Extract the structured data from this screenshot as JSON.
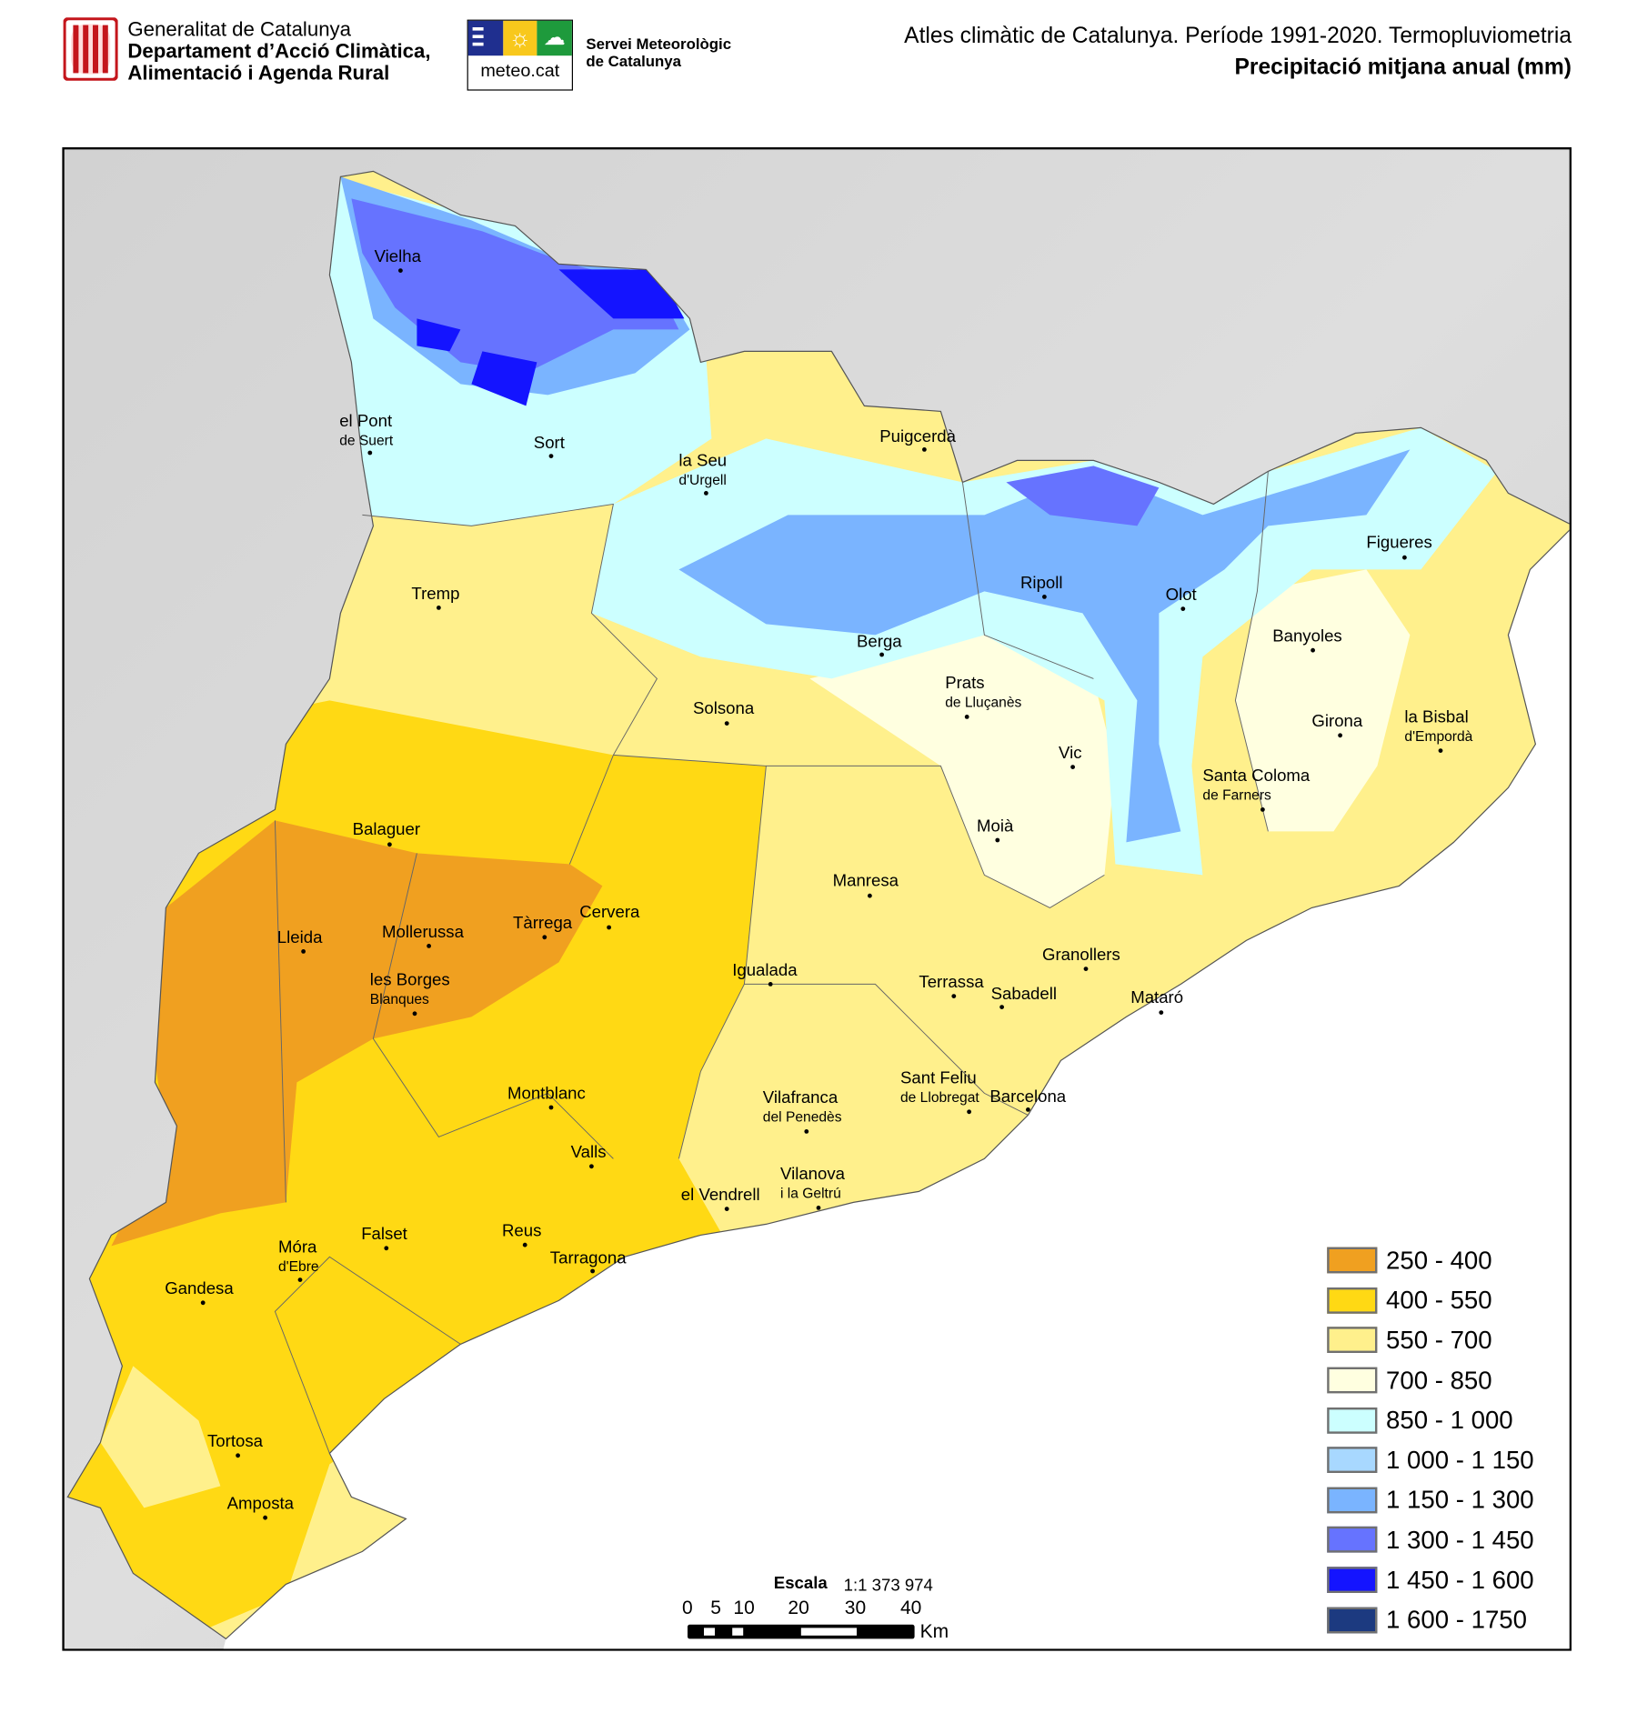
{
  "header": {
    "generalitat": "Generalitat de Catalunya",
    "department_line1": "Departament d’Acció Climàtica,",
    "department_line2": "Alimentació i Agenda Rural",
    "meteo_logo": "meteo.cat",
    "servei_line1": "Servei Meteorològic",
    "servei_line2": "de Catalunya",
    "title": "Atles climàtic de Catalunya. Període 1991-2020. Termopluviometria",
    "subtitle": "Precipitació mitjana anual (mm)"
  },
  "legend": [
    {
      "label": "250 - 400",
      "color": "#f0a020"
    },
    {
      "label": "400 - 550",
      "color": "#ffd914"
    },
    {
      "label": "550 - 700",
      "color": "#fff08c"
    },
    {
      "label": "700 - 850",
      "color": "#ffffe0"
    },
    {
      "label": "850 - 1 000",
      "color": "#ccffff"
    },
    {
      "label": "1 000 - 1 150",
      "color": "#a8d8ff"
    },
    {
      "label": "1 150 - 1 300",
      "color": "#7ab4ff"
    },
    {
      "label": "1 300 - 1 450",
      "color": "#6673ff"
    },
    {
      "label": "1 450 - 1 600",
      "color": "#1414ff"
    },
    {
      "label": "1 600 - 1750",
      "color": "#1c3a80"
    }
  ],
  "scale": {
    "title": "Escala",
    "ratio": "1:1 373 974",
    "ticks": [
      "0",
      "5",
      "10",
      "20",
      "30",
      "40"
    ],
    "unit": "Km"
  },
  "cities": [
    {
      "name": "Vielha"
    },
    {
      "name": "el Pont",
      "sub": "de Suert"
    },
    {
      "name": "Sort"
    },
    {
      "name": "la Seu",
      "sub": "d'Urgell"
    },
    {
      "name": "Puigcerdà"
    },
    {
      "name": "Tremp"
    },
    {
      "name": "Figueres"
    },
    {
      "name": "Ripoll"
    },
    {
      "name": "Olot"
    },
    {
      "name": "Banyoles"
    },
    {
      "name": "Berga"
    },
    {
      "name": "Prats",
      "sub": "de Lluçanès"
    },
    {
      "name": "Solsona"
    },
    {
      "name": "Girona"
    },
    {
      "name": "la Bisbal",
      "sub": "d'Empordà"
    },
    {
      "name": "Vic"
    },
    {
      "name": "Santa Coloma",
      "sub": "de Farners"
    },
    {
      "name": "Moià"
    },
    {
      "name": "Balaguer"
    },
    {
      "name": "Manresa"
    },
    {
      "name": "Cervera"
    },
    {
      "name": "Tàrrega"
    },
    {
      "name": "Mollerussa"
    },
    {
      "name": "Lleida"
    },
    {
      "name": "Granollers"
    },
    {
      "name": "Igualada"
    },
    {
      "name": "les Borges",
      "sub": "Blanques"
    },
    {
      "name": "Terrassa"
    },
    {
      "name": "Sabadell"
    },
    {
      "name": "Mataró"
    },
    {
      "name": "Montblanc"
    },
    {
      "name": "Sant Feliu",
      "sub": "de Llobregat"
    },
    {
      "name": "Barcelona"
    },
    {
      "name": "Vilafranca",
      "sub": "del Penedès"
    },
    {
      "name": "Valls"
    },
    {
      "name": "Vilanova",
      "sub": "i la Geltrú"
    },
    {
      "name": "el Vendrell"
    },
    {
      "name": "Reus"
    },
    {
      "name": "Falset"
    },
    {
      "name": "Móra",
      "sub": "d'Ebre"
    },
    {
      "name": "Tarragona"
    },
    {
      "name": "Gandesa"
    },
    {
      "name": "Tortosa"
    },
    {
      "name": "Amposta"
    }
  ]
}
